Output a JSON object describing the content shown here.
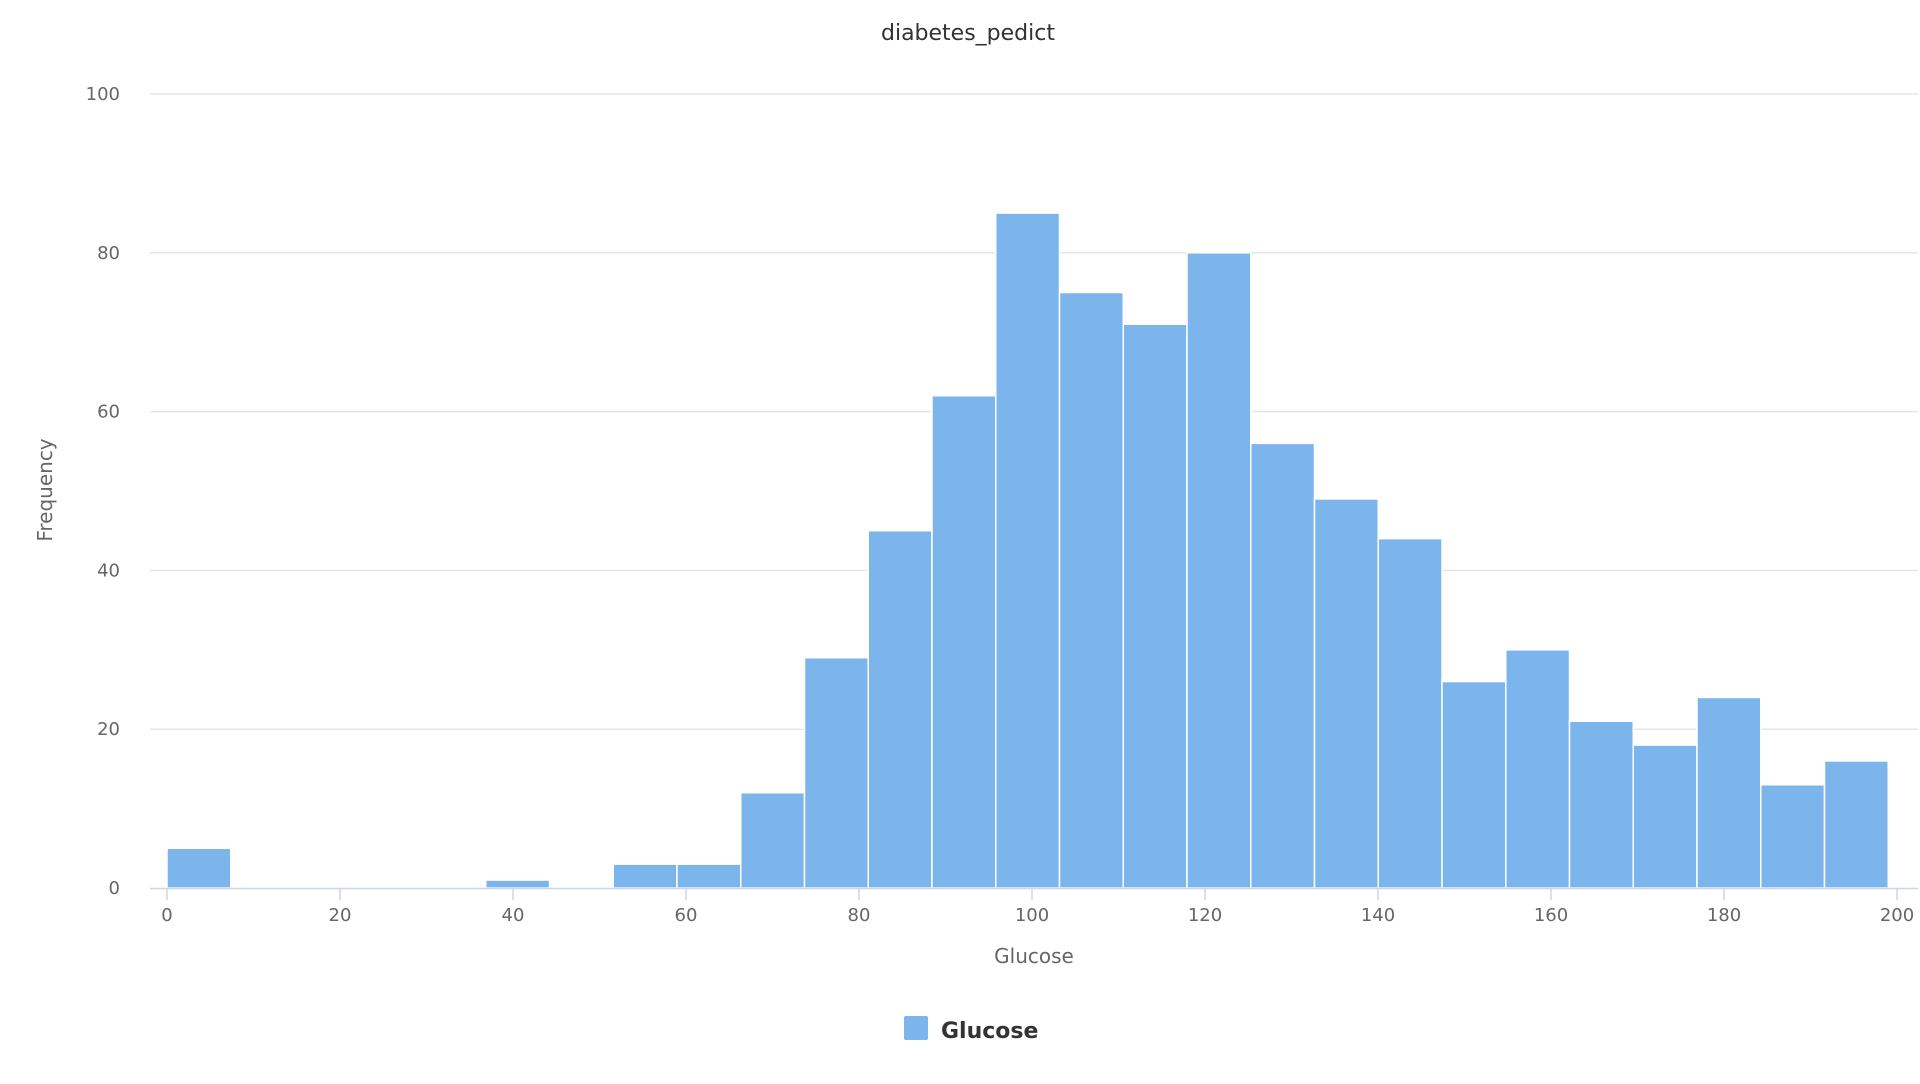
{
  "chart_data": {
    "type": "bar",
    "title": "diabetes_pedict",
    "xlabel": "Glucose",
    "ylabel": "Frequency",
    "xlim": [
      0,
      199
    ],
    "ylim": [
      0,
      100
    ],
    "x_ticks": [
      "0",
      "20",
      "40",
      "60",
      "80",
      "100",
      "120",
      "140",
      "160",
      "180",
      "200"
    ],
    "y_ticks": [
      "0",
      "20",
      "40",
      "60",
      "80",
      "100"
    ],
    "bin_width": 7.37,
    "series": [
      {
        "name": "Glucose",
        "values": [
          5,
          0,
          0,
          0,
          0,
          1,
          0,
          3,
          3,
          12,
          29,
          45,
          62,
          85,
          75,
          71,
          80,
          56,
          49,
          44,
          26,
          30,
          21,
          18,
          24,
          13,
          16
        ]
      }
    ],
    "grid": true,
    "legend_position": "bottom-center",
    "colors": {
      "bar": "#7cb5ec",
      "grid": "#e6e6e6",
      "axis_line": "#ccd6eb"
    }
  }
}
